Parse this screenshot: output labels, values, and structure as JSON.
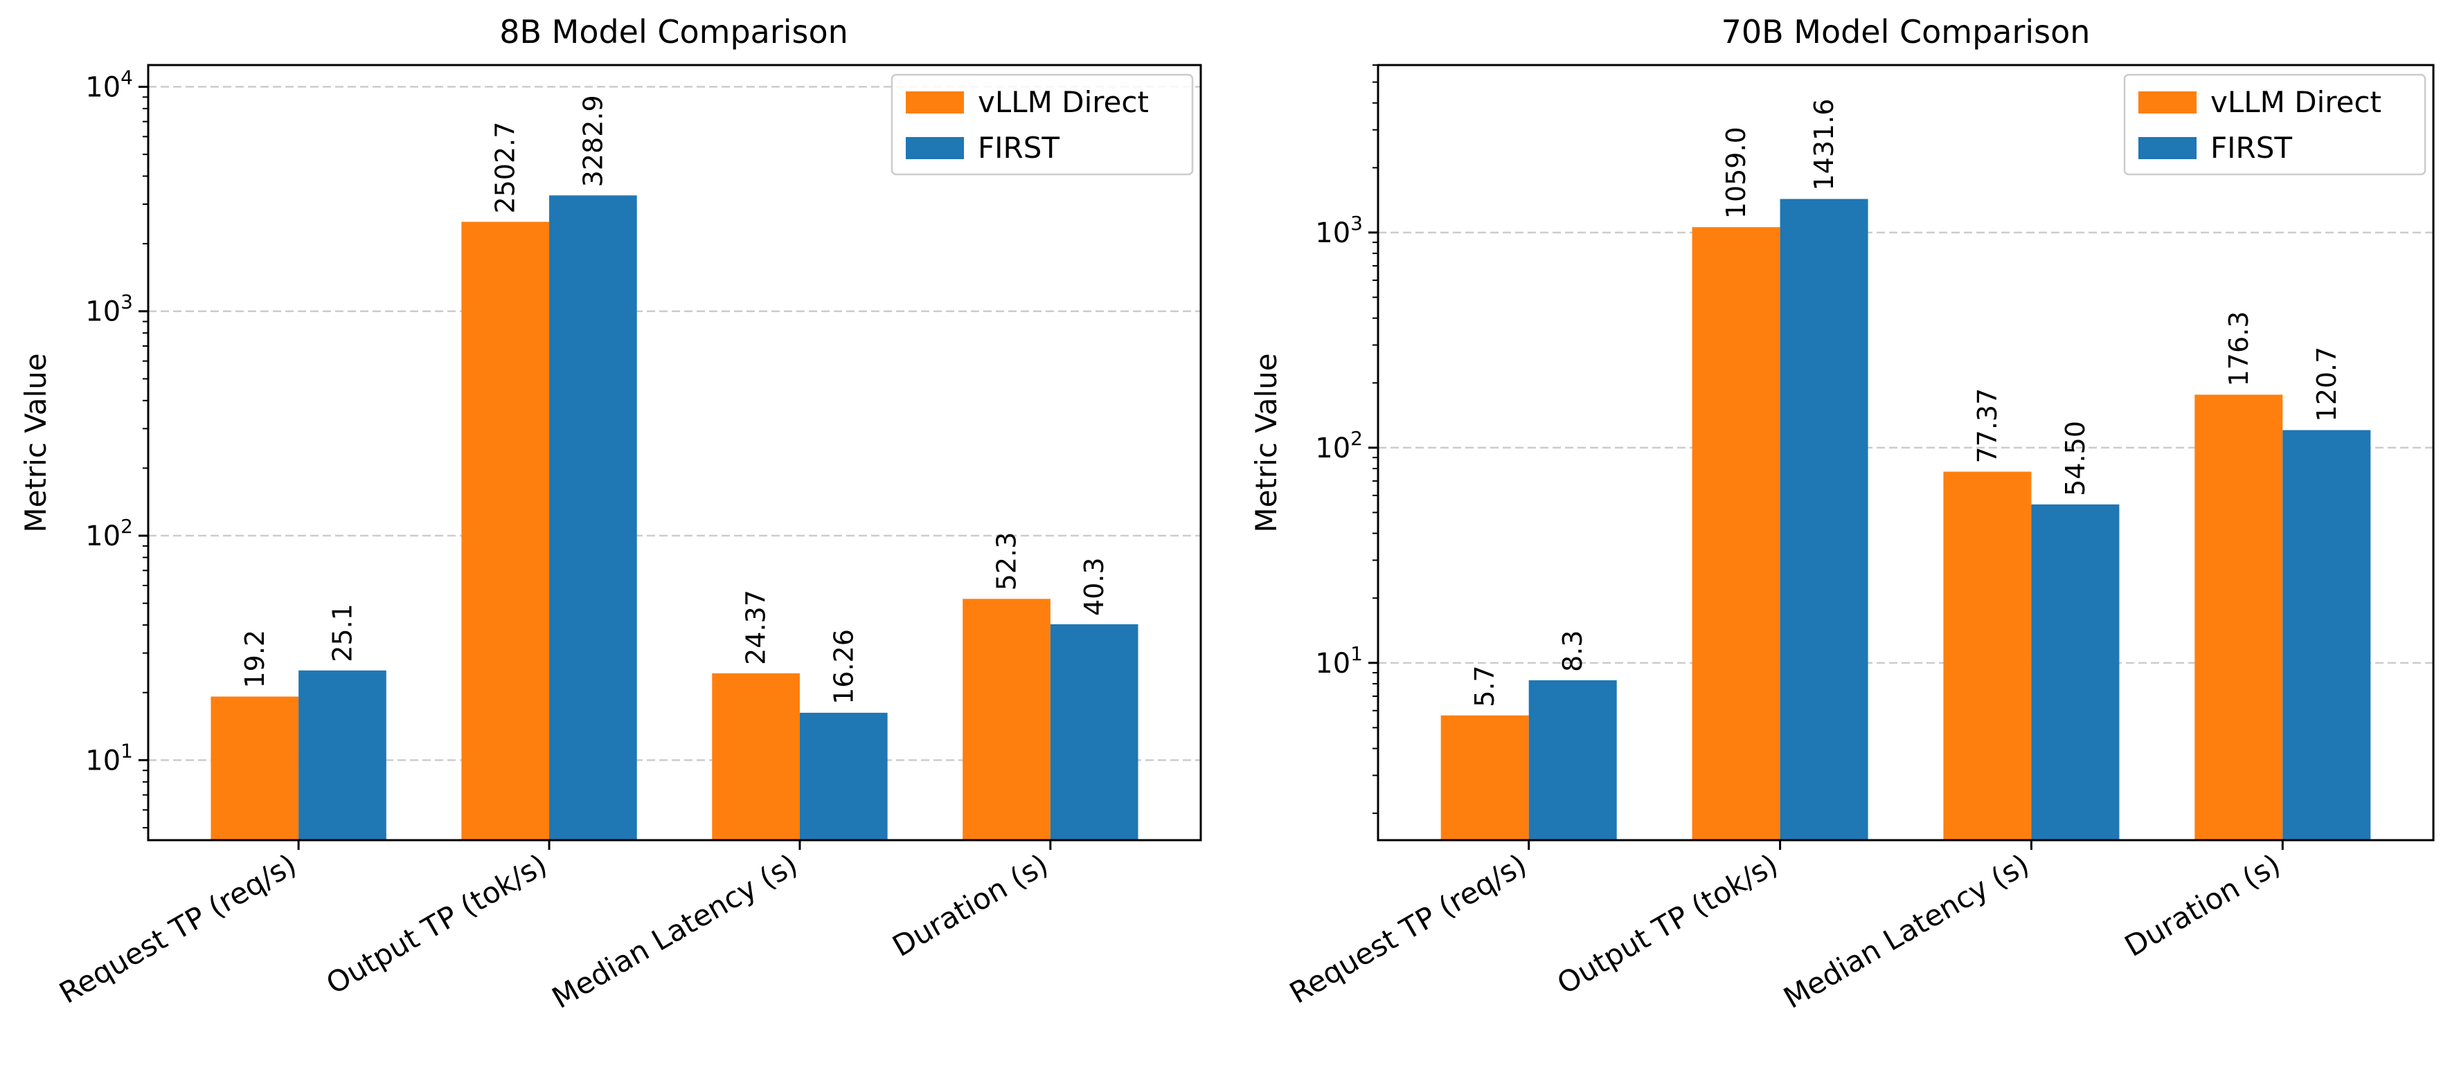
{
  "chart_data": [
    {
      "type": "bar",
      "title": "8B Model Comparison",
      "xlabel": "",
      "ylabel": "Metric Value",
      "yscale": "log",
      "ylim": [
        4.4,
        12500
      ],
      "categories": [
        "Request TP (req/s)",
        "Output TP (tok/s)",
        "Median Latency (s)",
        "Duration (s)"
      ],
      "series": [
        {
          "name": "vLLM Direct",
          "color": "#ff7f0e",
          "values": [
            19.2,
            2502.7,
            24.37,
            52.3
          ],
          "labels": [
            "19.2",
            "2502.7",
            "24.37",
            "52.3"
          ]
        },
        {
          "name": "FIRST",
          "color": "#1f77b4",
          "values": [
            25.1,
            3282.9,
            16.26,
            40.3
          ],
          "labels": [
            "25.1",
            "3282.9",
            "16.26",
            "40.3"
          ]
        }
      ],
      "yticks": [
        10,
        100,
        1000,
        10000
      ],
      "ytick_labels": [
        {
          "base": "10",
          "exp": "1"
        },
        {
          "base": "10",
          "exp": "2"
        },
        {
          "base": "10",
          "exp": "3"
        },
        {
          "base": "10",
          "exp": "4"
        }
      ],
      "grid": "y-major-dashed",
      "legend": "upper-right"
    },
    {
      "type": "bar",
      "title": "70B Model Comparison",
      "xlabel": "",
      "ylabel": "Metric Value",
      "yscale": "log",
      "ylim": [
        1.5,
        6000
      ],
      "categories": [
        "Request TP (req/s)",
        "Output TP (tok/s)",
        "Median Latency (s)",
        "Duration (s)"
      ],
      "series": [
        {
          "name": "vLLM Direct",
          "color": "#ff7f0e",
          "values": [
            5.7,
            1059.0,
            77.37,
            176.3
          ],
          "labels": [
            "5.7",
            "1059.0",
            "77.37",
            "176.3"
          ]
        },
        {
          "name": "FIRST",
          "color": "#1f77b4",
          "values": [
            8.3,
            1431.6,
            54.5,
            120.7
          ],
          "labels": [
            "8.3",
            "1431.6",
            "54.50",
            "120.7"
          ]
        }
      ],
      "yticks": [
        10,
        100,
        1000
      ],
      "ytick_labels": [
        {
          "base": "10",
          "exp": "1"
        },
        {
          "base": "10",
          "exp": "2"
        },
        {
          "base": "10",
          "exp": "3"
        }
      ],
      "grid": "y-major-dashed",
      "legend": "upper-right"
    }
  ]
}
